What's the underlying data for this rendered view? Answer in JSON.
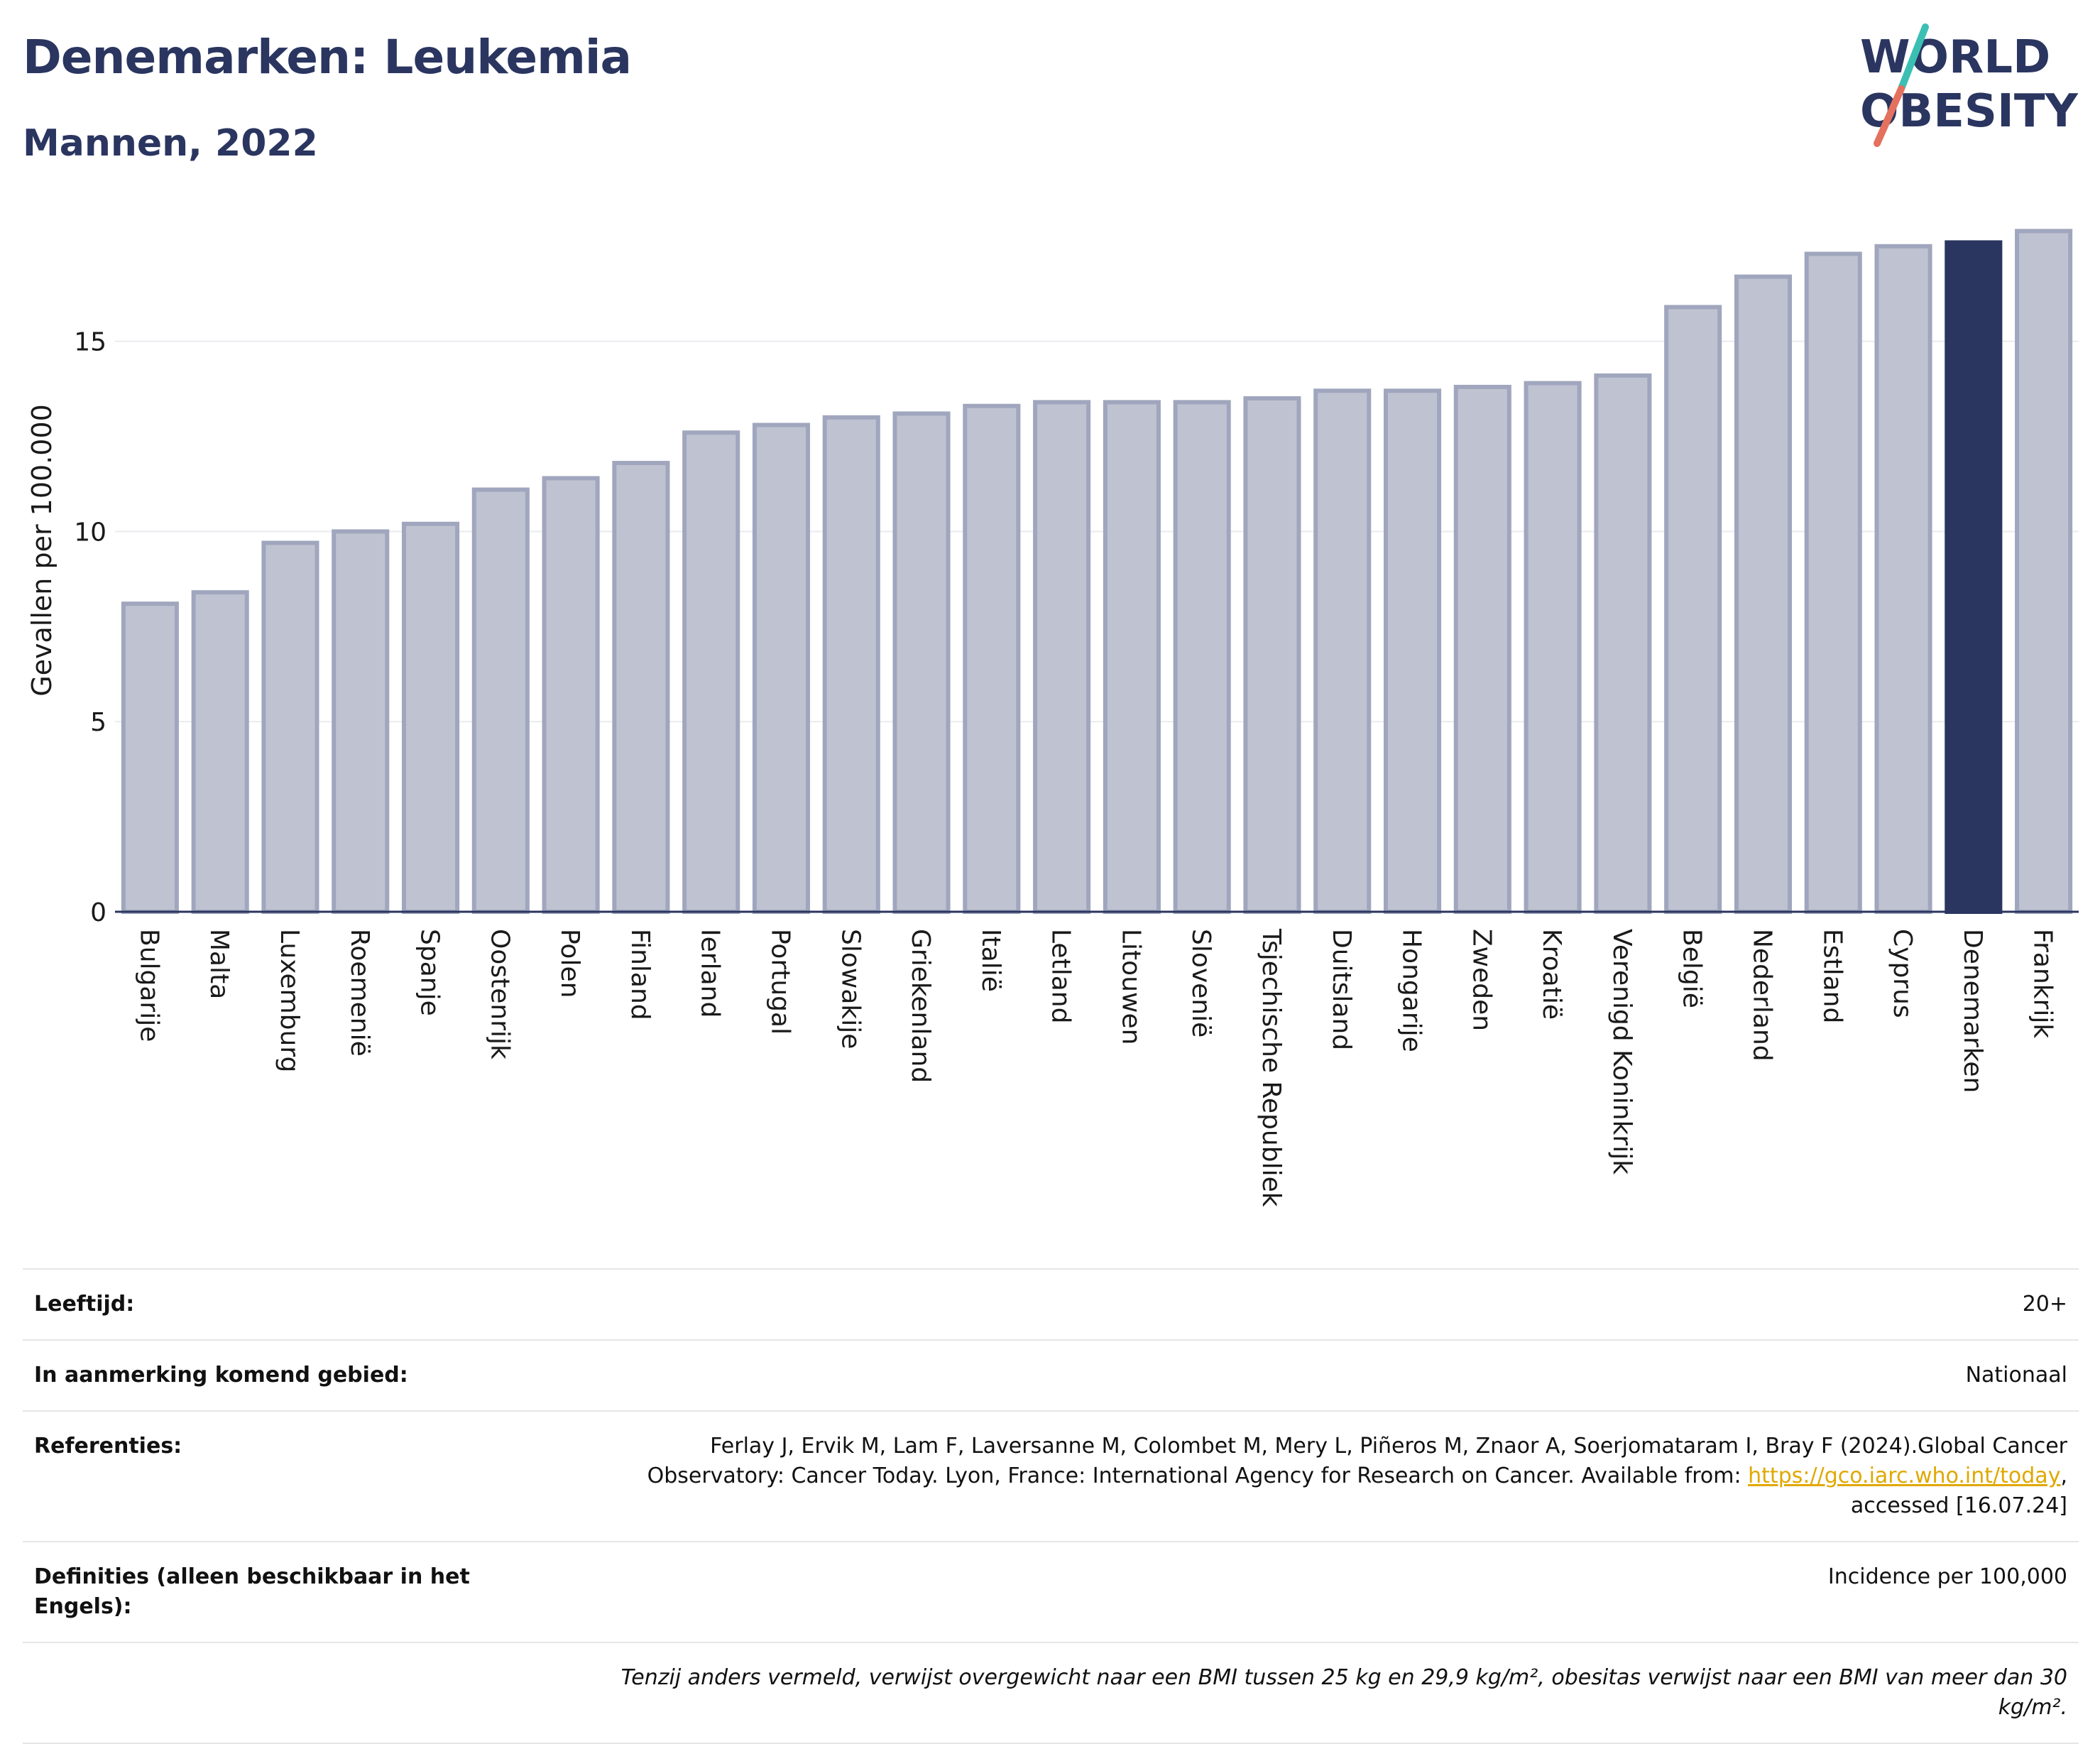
{
  "header": {
    "title": "Denemarken: Leukemia",
    "subtitle": "Mannen, 2022"
  },
  "logo": {
    "line1": "WORLD",
    "line2": "OBESITY"
  },
  "colors": {
    "bar": "#bfc3d1",
    "bar_border": "#a0a6bd",
    "highlight": "#2a3560",
    "grid": "#e9ebef",
    "axis": "#2a3560"
  },
  "chart_data": {
    "type": "bar",
    "ylabel": "Gevallen per 100.000",
    "xlabel": "",
    "ylim": [
      0,
      18
    ],
    "yticks": [
      0,
      5,
      10,
      15
    ],
    "grid": true,
    "highlight_category": "Denemarken",
    "categories": [
      "Bulgarije",
      "Malta",
      "Luxemburg",
      "Roemenië",
      "Spanje",
      "Oostenrijk",
      "Polen",
      "Finland",
      "Ierland",
      "Portugal",
      "Slowakije",
      "Griekenland",
      "Italië",
      "Letland",
      "Litouwen",
      "Slovenië",
      "Tsjechische Republiek",
      "Duitsland",
      "Hongarije",
      "Zweden",
      "Kroatië",
      "Verenigd Koninkrijk",
      "België",
      "Nederland",
      "Estland",
      "Cyprus",
      "Denemarken",
      "Frankrijk"
    ],
    "values": [
      8.1,
      8.4,
      9.7,
      10.0,
      10.2,
      11.1,
      11.4,
      11.8,
      12.6,
      12.8,
      13.0,
      13.1,
      13.3,
      13.4,
      13.4,
      13.4,
      13.5,
      13.7,
      13.7,
      13.8,
      13.9,
      14.1,
      15.9,
      16.7,
      17.3,
      17.5,
      17.6,
      17.9
    ]
  },
  "info": {
    "age_label": "Leeftijd:",
    "age_value": "20+",
    "area_label": "In aanmerking komend gebied:",
    "area_value": "Nationaal",
    "ref_label": "Referenties:",
    "ref_text_1": "Ferlay J, Ervik M, Lam F, Laversanne M, Colombet M, Mery L, Piñeros M, Znaor A, Soerjomataram I, Bray F (2024).Global Cancer Observatory: Cancer Today. Lyon, France: International Agency for Research on Cancer. Available from: ",
    "ref_link": "https://gco.iarc.who.int/today",
    "ref_text_2": ", accessed [16.07.24]",
    "def_label": "Definities (alleen beschikbaar in het Engels):",
    "def_value": "Incidence per 100,000",
    "note": "Tenzij anders vermeld, verwijst overgewicht naar een BMI tussen 25 kg en 29,9 kg/m², obesitas verwijst naar een BMI van meer dan 30 kg/m²."
  }
}
